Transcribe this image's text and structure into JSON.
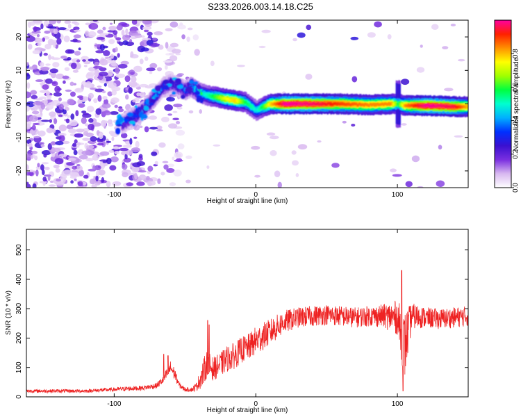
{
  "title": "S233.2026.003.14.18.C25",
  "top_panel": {
    "xlabel": "Height of straight line (km)",
    "ylabel": "Frequency (Hz)",
    "colorbar_label": "Normalized spectral amplitude"
  },
  "bottom_panel": {
    "xlabel": "Height of straight line (km)",
    "ylabel": "SNR (10 * v/v)"
  },
  "chart_data": [
    {
      "type": "heatmap",
      "title": "S233.2026.003.14.18.C25",
      "xlabel": "Height of straight line (km)",
      "ylabel": "Frequency (Hz)",
      "xlim": [
        -162,
        150
      ],
      "ylim": [
        -25,
        25
      ],
      "xticks": [
        -100,
        0,
        100
      ],
      "yticks": [
        -20,
        -10,
        0,
        10,
        20
      ],
      "xtick_labels": [
        "-100",
        "0",
        "100"
      ],
      "ytick_labels": [
        "-20",
        "-10",
        "0",
        "10",
        "20"
      ],
      "colorbar": {
        "label": "Normalized spectral amplitude",
        "range": [
          0,
          1
        ],
        "ticks": [
          0.0,
          0.2,
          0.4,
          0.6,
          0.8
        ],
        "tick_labels": [
          "0.0",
          "0.2",
          "0.4",
          "0.6",
          "0.8"
        ],
        "colors": [
          "#ffffff",
          "#d8b8f0",
          "#7a2fe0",
          "#3a10d0",
          "#0030ff",
          "#00b0ff",
          "#00ffd0",
          "#00ff40",
          "#a0ff00",
          "#ffff00",
          "#ff9000",
          "#ff2000",
          "#ff00a0"
        ]
      },
      "ridge": {
        "x": [
          -95,
          -80,
          -72,
          -66,
          -60,
          -55,
          -50,
          -46,
          -42,
          -38,
          -34,
          -28,
          -22,
          -15,
          -8,
          -3,
          0,
          4,
          10,
          20,
          40,
          60,
          80,
          95,
          100,
          105,
          120,
          140,
          150
        ],
        "y": [
          -6,
          -2,
          2,
          5,
          6,
          5,
          4,
          5,
          4,
          3,
          2.5,
          2,
          1.5,
          1,
          0.5,
          -1,
          -2,
          -1,
          0,
          0,
          0,
          0,
          -0.3,
          0,
          0,
          -0.5,
          -0.5,
          -0.8,
          -0.8
        ],
        "amp": [
          0.25,
          0.3,
          0.35,
          0.3,
          0.25,
          0.25,
          0.3,
          0.35,
          0.4,
          0.45,
          0.5,
          0.6,
          0.7,
          0.75,
          0.55,
          0.5,
          0.45,
          0.55,
          0.75,
          0.95,
          0.92,
          0.85,
          0.8,
          0.8,
          0.55,
          0.8,
          0.95,
          0.9,
          0.75
        ]
      }
    },
    {
      "type": "line",
      "xlabel": "Height of straight line (km)",
      "ylabel": "SNR (10 * v/v)",
      "xlim": [
        -162,
        150
      ],
      "ylim": [
        0,
        570
      ],
      "xticks": [
        -100,
        0,
        100
      ],
      "yticks": [
        0,
        100,
        200,
        300,
        400,
        500
      ],
      "xtick_labels": [
        "-100",
        "0",
        "100"
      ],
      "ytick_labels": [
        "0",
        "100",
        "200",
        "300",
        "400",
        "500"
      ],
      "color": "#ee2222",
      "envelope": {
        "x": [
          -162,
          -140,
          -120,
          -100,
          -90,
          -80,
          -70,
          -65,
          -60,
          -57,
          -54,
          -50,
          -45,
          -42,
          -38,
          -35,
          -30,
          -25,
          -20,
          -15,
          -10,
          -5,
          0,
          10,
          20,
          30,
          40,
          50,
          60,
          70,
          80,
          90,
          100,
          105,
          110,
          120,
          130,
          140,
          150
        ],
        "mean": [
          20,
          20,
          20,
          25,
          28,
          30,
          38,
          60,
          100,
          75,
          40,
          25,
          25,
          35,
          70,
          110,
          95,
          110,
          130,
          140,
          160,
          170,
          190,
          220,
          255,
          270,
          275,
          280,
          275,
          270,
          275,
          275,
          270,
          170,
          275,
          270,
          265,
          270,
          275
        ],
        "noise": [
          6,
          6,
          6,
          7,
          8,
          8,
          10,
          15,
          25,
          20,
          10,
          7,
          8,
          15,
          40,
          50,
          40,
          40,
          45,
          45,
          45,
          45,
          50,
          45,
          40,
          35,
          35,
          35,
          35,
          35,
          35,
          40,
          60,
          120,
          45,
          35,
          35,
          35,
          35
        ]
      },
      "spikes": [
        {
          "x": -65,
          "y": 145
        },
        {
          "x": -62,
          "y": 140
        },
        {
          "x": -34,
          "y": 260
        },
        {
          "x": -33,
          "y": 245
        },
        {
          "x": 104,
          "y": 570
        },
        {
          "x": 103,
          "y": 430
        },
        {
          "x": 104,
          "y": 20
        }
      ]
    }
  ]
}
